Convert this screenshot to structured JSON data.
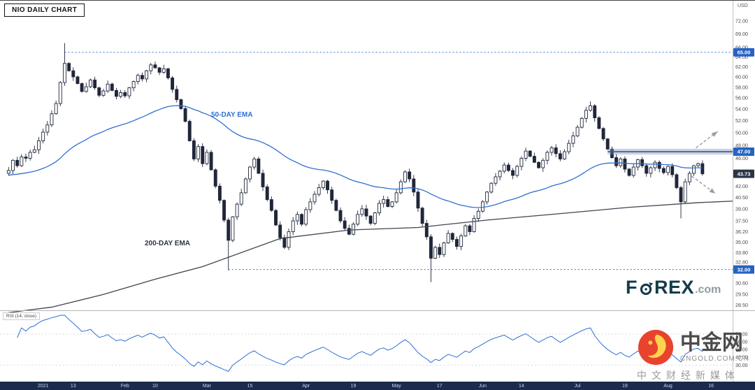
{
  "meta": {
    "title": "NIO DAILY CHART",
    "currency_label": "USD"
  },
  "annotations": {
    "ema50_label": "50-DAY EMA",
    "ema200_label": "200-DAY EMA",
    "rsi_label": "RSI (14, close)"
  },
  "logo": {
    "part1": "F",
    "part2": "REX",
    "part3": ".com"
  },
  "watermark": {
    "cn_name": "中金网",
    "domain": "CNGOLD.COM.CN",
    "tagline": "中文财经新媒体"
  },
  "colors": {
    "candle_dark": "#20273a",
    "candle_up_fill": "#ffffff",
    "ema50": "#2f6fd0",
    "ema200": "#3f4450",
    "level_dotted": "#2e6bd6",
    "band_fill": "rgba(124,142,188,0.40)",
    "band_line": "#41518a",
    "badge_blue": "#2563c4",
    "badge_dark": "#2b3547",
    "axis_text": "#4a4a4a",
    "arrow": "#999ea6",
    "rsi_line": "#2f6fd0",
    "rsi_grid": "#d9d9d9",
    "xbar_bg": "#1c2a4e",
    "forex_brand": "#123c49",
    "cngold_red": "#e8432d",
    "cngold_yellow": "#ffd34d"
  },
  "chart_data": {
    "type": "candlestick",
    "title": "NIO DAILY CHART",
    "symbol": "NIO",
    "timeframe": "daily",
    "scale": "log",
    "price_domain": [
      28.2,
      73.5
    ],
    "x_domain": [
      -2,
      168
    ],
    "first_open": 43.8,
    "wick_pct": 0.011,
    "closes": [
      44.2,
      45.7,
      44.9,
      46.2,
      46.0,
      46.9,
      47.3,
      48.7,
      50.1,
      51.3,
      53.2,
      55.0,
      58.9,
      62.7,
      61.2,
      60.0,
      58.7,
      57.2,
      58.1,
      59.4,
      57.9,
      56.5,
      57.3,
      58.6,
      57.4,
      56.3,
      57.0,
      56.4,
      57.9,
      59.1,
      60.3,
      59.6,
      61.2,
      62.4,
      61.8,
      60.9,
      61.6,
      59.8,
      57.6,
      55.7,
      54.1,
      51.9,
      48.7,
      45.9,
      47.8,
      45.2,
      46.9,
      44.3,
      42.0,
      40.1,
      37.6,
      35.2,
      38.0,
      39.6,
      41.1,
      43.0,
      44.7,
      45.9,
      43.8,
      41.9,
      40.2,
      38.8,
      37.0,
      35.5,
      34.4,
      36.2,
      37.5,
      38.3,
      37.1,
      38.9,
      39.9,
      40.9,
      41.8,
      42.7,
      41.5,
      40.1,
      38.8,
      37.5,
      36.6,
      35.9,
      37.1,
      38.3,
      39.0,
      38.1,
      37.2,
      38.5,
      39.7,
      40.2,
      39.3,
      39.9,
      41.1,
      42.6,
      44.0,
      43.0,
      41.2,
      39.1,
      37.2,
      35.6,
      33.2,
      34.4,
      33.6,
      34.9,
      36.0,
      35.3,
      34.5,
      35.7,
      36.9,
      36.2,
      37.8,
      38.7,
      39.9,
      41.2,
      42.4,
      43.3,
      44.1,
      45.0,
      44.2,
      43.5,
      44.8,
      46.0,
      47.1,
      46.3,
      45.4,
      44.6,
      45.7,
      46.9,
      47.6,
      46.7,
      45.9,
      47.0,
      48.3,
      49.5,
      50.9,
      52.4,
      53.8,
      54.6,
      52.5,
      50.7,
      49.0,
      47.4,
      46.1,
      44.9,
      45.9,
      44.4,
      43.5,
      44.7,
      45.8,
      44.9,
      43.8,
      44.6,
      45.4,
      44.5,
      43.9,
      44.8,
      43.6,
      41.8,
      39.9,
      42.6,
      43.8,
      44.9,
      45.2,
      43.73
    ],
    "wick_overrides": {
      "13": {
        "high": 66.99
      },
      "51": {
        "low": 31.91
      },
      "98": {
        "low": 30.71
      },
      "135": {
        "high": 55.4
      },
      "156": {
        "low": 37.8
      }
    },
    "ema50": {
      "period": 50,
      "seed": 43.5
    },
    "ema200_points": [
      [
        0,
        27.8
      ],
      [
        10,
        28.3
      ],
      [
        22,
        29.5
      ],
      [
        34,
        31.0
      ],
      [
        45,
        32.3
      ],
      [
        63,
        35.4
      ],
      [
        79,
        36.4
      ],
      [
        95,
        36.7
      ],
      [
        111,
        37.6
      ],
      [
        128,
        38.4
      ],
      [
        144,
        39.2
      ],
      [
        160,
        39.8
      ],
      [
        168,
        40.0
      ]
    ],
    "x_ticks": [
      {
        "label": "2021",
        "i": 8
      },
      {
        "label": "13",
        "i": 15
      },
      {
        "label": "Feb",
        "i": 27
      },
      {
        "label": "10",
        "i": 34
      },
      {
        "label": "Mar",
        "i": 46
      },
      {
        "label": "15",
        "i": 56
      },
      {
        "label": "Apr",
        "i": 69
      },
      {
        "label": "19",
        "i": 80
      },
      {
        "label": "May",
        "i": 90
      },
      {
        "label": "17",
        "i": 100
      },
      {
        "label": "Jun",
        "i": 110
      },
      {
        "label": "14",
        "i": 119
      },
      {
        "label": "Jul",
        "i": 132
      },
      {
        "label": "19",
        "i": 143
      },
      {
        "label": "Aug",
        "i": 153
      },
      {
        "label": "16",
        "i": 163
      }
    ],
    "y_ticks": [
      72,
      69,
      66,
      64,
      62,
      60,
      58,
      56,
      54,
      52,
      50,
      48,
      46,
      42,
      40.5,
      39,
      37.5,
      36.2,
      35,
      33.8,
      32.8,
      30.6,
      29.5,
      28.5
    ],
    "price_markers": [
      {
        "value": 65.0,
        "label": "65.00",
        "style": "blue"
      },
      {
        "value": 47.0,
        "label": "47.00",
        "style": "blue"
      },
      {
        "value": 43.73,
        "label": "43.73",
        "style": "dark"
      },
      {
        "value": 32.0,
        "label": "32.00",
        "style": "blue"
      }
    ],
    "levels": [
      {
        "value": 65.0,
        "from_i": 13
      },
      {
        "value": 32.0,
        "from_i": 51
      }
    ],
    "resistance_band": {
      "from_i": 139,
      "top": 47.45,
      "bottom": 46.55,
      "line": 47.0
    },
    "arrows": [
      {
        "x1": 159.5,
        "p1": 47.6,
        "x2": 164.5,
        "p2": 50.2,
        "dir": "up"
      },
      {
        "x1": 158.5,
        "p1": 43.4,
        "x2": 164.0,
        "p2": 41.0,
        "dir": "down"
      }
    ],
    "rsi": {
      "period": 14,
      "domain": [
        15,
        95
      ],
      "ticks": [
        70,
        60,
        50,
        40,
        30
      ],
      "grid": [
        70,
        30
      ]
    },
    "last_price": 43.73
  }
}
